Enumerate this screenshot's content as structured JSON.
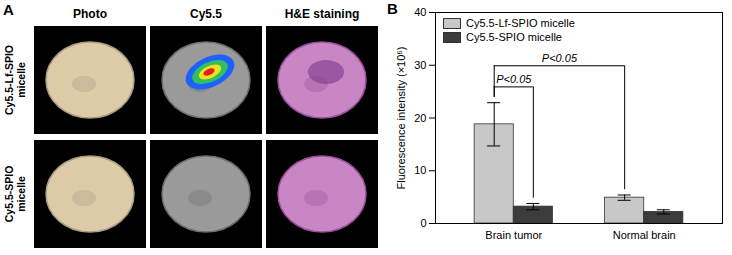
{
  "panel_labels": [
    "A",
    "B"
  ],
  "panel_a": {
    "columns": [
      "Photo",
      "Cy5.5",
      "H&E staining"
    ],
    "rows": [
      "Cy5.5-Lf-SPIO micelle",
      "Cy5.5-SPIO micelle"
    ]
  },
  "chart_data": {
    "type": "bar",
    "categories": [
      "Brain tumor",
      "Normal brain"
    ],
    "series": [
      {
        "name": "Cy5.5-Lf-SPIO micelle",
        "color": "#c8c8c8",
        "values": [
          18.8,
          4.9
        ],
        "errors": [
          4.1,
          0.5
        ]
      },
      {
        "name": "Cy5.5-SPIO micelle",
        "color": "#3c3c3c",
        "values": [
          3.2,
          2.2
        ],
        "errors": [
          0.6,
          0.4
        ]
      }
    ],
    "y_label": "Fluorescence intensity (×10⁶)",
    "ylim": [
      0,
      40
    ],
    "yticks": [
      0,
      10,
      20,
      30,
      40
    ],
    "legend": "top-left",
    "annotations": [
      {
        "text": "P<0.05",
        "between": [
          [
            "Brain tumor",
            "Cy5.5-Lf-SPIO micelle"
          ],
          [
            "Brain tumor",
            "Cy5.5-SPIO micelle"
          ]
        ]
      },
      {
        "text": "P<0.05",
        "between": [
          [
            "Brain tumor",
            "Cy5.5-Lf-SPIO micelle"
          ],
          [
            "Normal brain",
            "Cy5.5-Lf-SPIO micelle"
          ]
        ]
      }
    ]
  }
}
